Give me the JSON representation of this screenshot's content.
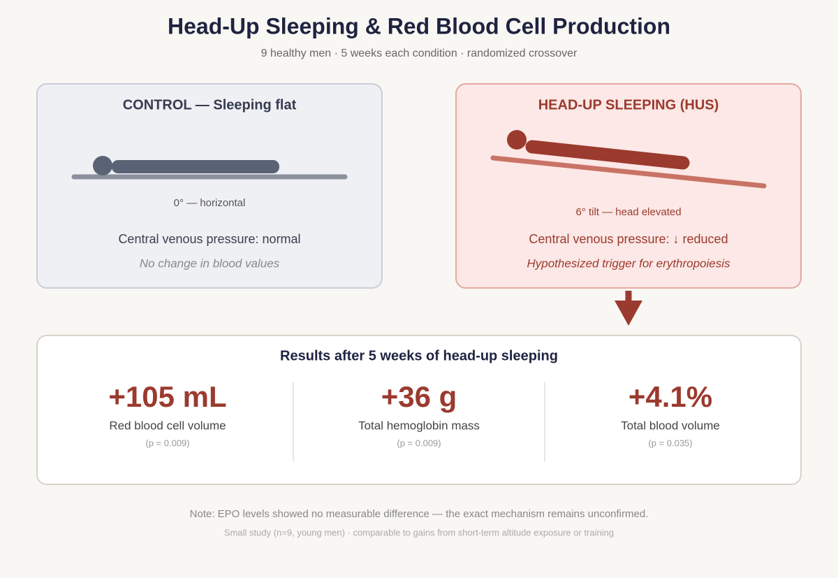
{
  "header": {
    "title": "Head-Up Sleeping & Red Blood Cell Production",
    "subtitle": "9 healthy men · 5 weeks each condition · randomized crossover"
  },
  "panels": [
    {
      "title": "CONTROL — Sleeping flat",
      "angle_label": "0° — horizontal",
      "pressure": "Central venous pressure: normal",
      "note": "No change in blood values"
    },
    {
      "title": "HEAD-UP SLEEPING (HUS)",
      "angle_label": "6° tilt — head elevated",
      "pressure": "Central venous pressure: ↓ reduced",
      "note": "Hypothesized trigger for erythropoiesis"
    }
  ],
  "results": {
    "title": "Results after 5 weeks of head-up sleeping",
    "items": [
      {
        "value": "+105 mL",
        "label": "Red blood cell volume",
        "p": "(p = 0.009)"
      },
      {
        "value": "+36 g",
        "label": "Total hemoglobin mass",
        "p": "(p = 0.009)"
      },
      {
        "value": "+4.1%",
        "label": "Total blood volume",
        "p": "(p = 0.035)"
      }
    ]
  },
  "footer": {
    "note": "Note: EPO levels showed no measurable difference — the exact mechanism remains unconfirmed.",
    "small": "Small study (n=9, young men) · comparable to gains from short-term altitude exposure or training"
  }
}
